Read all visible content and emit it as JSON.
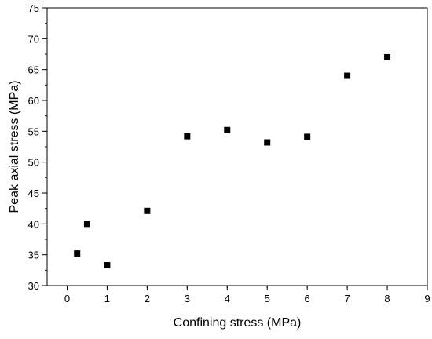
{
  "chart_data": {
    "type": "scatter",
    "xlabel": "Confining stress (MPa)",
    "ylabel": "Peak axial stress (MPa)",
    "xlim": [
      -0.5,
      9
    ],
    "ylim": [
      30,
      75
    ],
    "x_ticks": [
      0,
      1,
      2,
      3,
      4,
      5,
      6,
      7,
      8,
      9
    ],
    "y_ticks": [
      30,
      35,
      40,
      45,
      50,
      55,
      60,
      65,
      70,
      75
    ],
    "grid": false,
    "marker": "square",
    "marker_color": "#000000",
    "series": [
      {
        "points": [
          {
            "x": 0.25,
            "y": 35.2
          },
          {
            "x": 0.5,
            "y": 40.0
          },
          {
            "x": 1,
            "y": 33.3
          },
          {
            "x": 2,
            "y": 42.1
          },
          {
            "x": 3,
            "y": 54.2
          },
          {
            "x": 4,
            "y": 55.2
          },
          {
            "x": 5,
            "y": 53.2
          },
          {
            "x": 6,
            "y": 54.1
          },
          {
            "x": 7,
            "y": 64.0
          },
          {
            "x": 8,
            "y": 67.0
          }
        ]
      }
    ]
  }
}
